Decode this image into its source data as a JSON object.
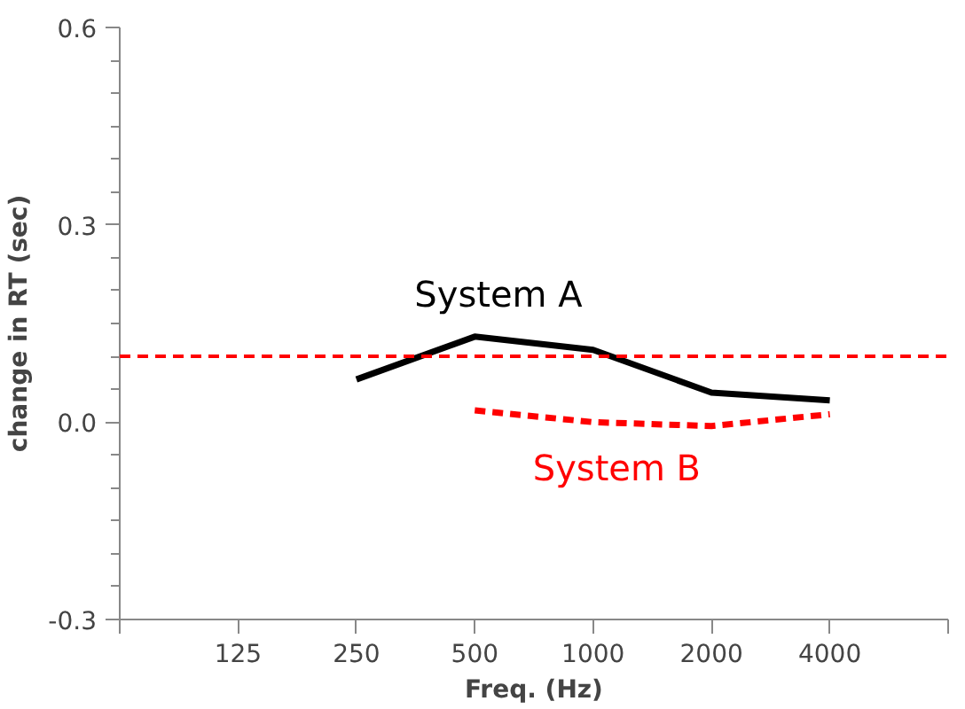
{
  "chart_data": {
    "type": "line",
    "xlabel": "Freq. (Hz)",
    "ylabel": "change in RT (sec)",
    "categories": [
      "125",
      "250",
      "500",
      "1000",
      "2000",
      "4000"
    ],
    "ylim": [
      -0.3,
      0.6
    ],
    "yticks": [
      {
        "value": -0.3,
        "label": "-0.3"
      },
      {
        "value": 0.0,
        "label": "0.0"
      },
      {
        "value": 0.3,
        "label": "0.3"
      },
      {
        "value": 0.6,
        "label": "0.6"
      }
    ],
    "grid": false,
    "legend": false,
    "series": [
      {
        "name": "System A",
        "color": "#000000",
        "line_style": "solid",
        "values": [
          null,
          0.065,
          0.13,
          0.11,
          0.045,
          0.033
        ]
      },
      {
        "name": "System B",
        "color": "#ff0000",
        "line_style": "dashed",
        "values": [
          null,
          null,
          0.018,
          0.0,
          -0.006,
          0.012
        ]
      }
    ],
    "ref_lines": [
      {
        "axis": "y",
        "value": 0.1,
        "color": "#ff0000",
        "line_style": "dashed"
      }
    ]
  }
}
